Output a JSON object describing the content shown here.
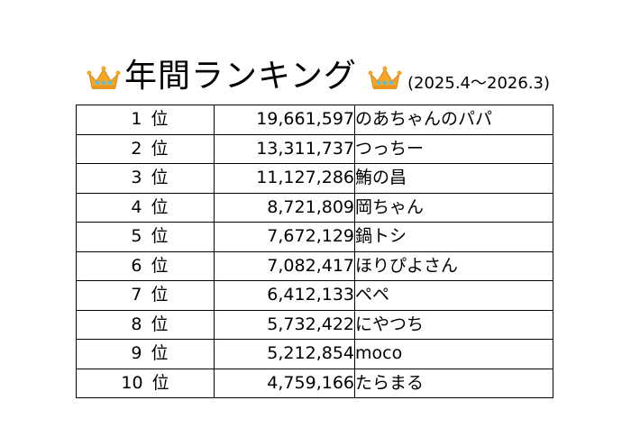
{
  "header": {
    "title": "年間ランキング",
    "period": "(2025.4〜2026.3)",
    "icon_left": "crown-icon",
    "icon_right": "crown-icon",
    "crown_color": "#F5A623",
    "jewel_color": "#4FC3F7"
  },
  "ranking": [
    {
      "rank": "1",
      "unit": "位",
      "score": "19,661,597",
      "name": "のあちゃんのパパ"
    },
    {
      "rank": "2",
      "unit": "位",
      "score": "13,311,737",
      "name": "つっちー"
    },
    {
      "rank": "3",
      "unit": "位",
      "score": "11,127,286",
      "name": "鮪の昌"
    },
    {
      "rank": "4",
      "unit": "位",
      "score": "8,721,809",
      "name": "岡ちゃん"
    },
    {
      "rank": "5",
      "unit": "位",
      "score": "7,672,129",
      "name": "鍋トシ"
    },
    {
      "rank": "6",
      "unit": "位",
      "score": "7,082,417",
      "name": "ほりぴよさん"
    },
    {
      "rank": "7",
      "unit": "位",
      "score": "6,412,133",
      "name": "ペペ"
    },
    {
      "rank": "8",
      "unit": "位",
      "score": "5,732,422",
      "name": "にやつち"
    },
    {
      "rank": "9",
      "unit": "位",
      "score": "5,212,854",
      "name": "moco"
    },
    {
      "rank": "10",
      "unit": "位",
      "score": "4,759,166",
      "name": "たらまる"
    }
  ]
}
